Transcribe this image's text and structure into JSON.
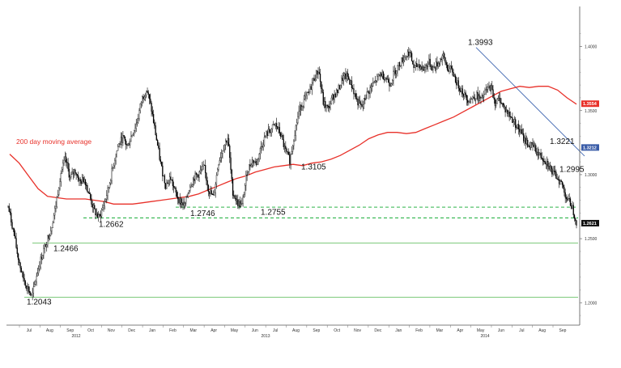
{
  "chart_data": {
    "type": "candlestick",
    "title": "",
    "xlabel": "",
    "ylabel": "",
    "ylim": [
      1.185,
      1.425
    ],
    "y_ticks": [
      "1.2000",
      "1.2500",
      "1.3000",
      "1.3500",
      "1.4000"
    ],
    "x_month_ticks": [
      "Jul",
      "Aug",
      "Sep",
      "Oct",
      "Nov",
      "Dec",
      "Jan",
      "Feb",
      "Mar",
      "Apr",
      "May",
      "Jun",
      "Jul",
      "Aug",
      "Sep",
      "Oct",
      "Nov",
      "Dec",
      "Jan",
      "Feb",
      "Mar",
      "Apr",
      "May",
      "Jun",
      "Jul",
      "Aug",
      "Sep"
    ],
    "x_year_ticks": [
      "2012",
      "2013",
      "2014"
    ],
    "close_path": [
      1.275,
      1.258,
      1.237,
      1.221,
      1.212,
      1.204,
      1.222,
      1.236,
      1.247,
      1.258,
      1.276,
      1.301,
      1.312,
      1.297,
      1.304,
      1.294,
      1.297,
      1.284,
      1.272,
      1.266,
      1.276,
      1.289,
      1.307,
      1.322,
      1.329,
      1.322,
      1.332,
      1.341,
      1.359,
      1.367,
      1.351,
      1.329,
      1.307,
      1.292,
      1.298,
      1.286,
      1.279,
      1.276,
      1.291,
      1.298,
      1.301,
      1.306,
      1.288,
      1.282,
      1.309,
      1.321,
      1.329,
      1.287,
      1.278,
      1.276,
      1.302,
      1.311,
      1.309,
      1.322,
      1.331,
      1.335,
      1.339,
      1.332,
      1.319,
      1.311,
      1.333,
      1.351,
      1.358,
      1.364,
      1.375,
      1.382,
      1.356,
      1.351,
      1.361,
      1.365,
      1.375,
      1.377,
      1.369,
      1.358,
      1.352,
      1.362,
      1.368,
      1.373,
      1.379,
      1.376,
      1.371,
      1.381,
      1.387,
      1.392,
      1.396,
      1.383,
      1.386,
      1.382,
      1.388,
      1.383,
      1.387,
      1.393,
      1.383,
      1.381,
      1.371,
      1.366,
      1.359,
      1.359,
      1.362,
      1.358,
      1.365,
      1.369,
      1.356,
      1.359,
      1.351,
      1.346,
      1.341,
      1.335,
      1.328,
      1.323,
      1.322,
      1.316,
      1.313,
      1.309,
      1.301,
      1.298,
      1.292,
      1.281,
      1.276,
      1.263
    ],
    "moving_average_path": [
      1.316,
      1.309,
      1.299,
      1.289,
      1.283,
      1.282,
      1.281,
      1.281,
      1.281,
      1.28,
      1.279,
      1.277,
      1.277,
      1.277,
      1.278,
      1.279,
      1.28,
      1.281,
      1.282,
      1.283,
      1.285,
      1.288,
      1.291,
      1.294,
      1.297,
      1.299,
      1.302,
      1.304,
      1.306,
      1.307,
      1.308,
      1.307,
      1.309,
      1.31,
      1.312,
      1.315,
      1.319,
      1.323,
      1.328,
      1.331,
      1.333,
      1.333,
      1.332,
      1.333,
      1.336,
      1.339,
      1.342,
      1.345,
      1.349,
      1.353,
      1.357,
      1.361,
      1.365,
      1.367,
      1.369,
      1.368,
      1.369,
      1.369,
      1.366,
      1.36,
      1.355
    ],
    "series": [
      {
        "name": "200 day moving average",
        "color": "#e8312a"
      }
    ],
    "annotations": [
      {
        "text": "1.3993",
        "value": 1.3993
      },
      {
        "text": "1.3221",
        "value": 1.3221
      },
      {
        "text": "1.3105",
        "value": 1.3105
      },
      {
        "text": "1.2995",
        "value": 1.2995
      },
      {
        "text": "1.2755",
        "value": 1.2755
      },
      {
        "text": "1.2746",
        "value": 1.2746
      },
      {
        "text": "1.2662",
        "value": 1.2662
      },
      {
        "text": "1.2466",
        "value": 1.2466
      },
      {
        "text": "1.2043",
        "value": 1.2043
      }
    ],
    "horizontal_levels": [
      {
        "value": 1.2746,
        "style": "dashed",
        "color": "#2db34a"
      },
      {
        "value": 1.2662,
        "style": "dashed",
        "color": "#2db34a"
      },
      {
        "value": 1.2466,
        "style": "solid",
        "color": "#6cc36a"
      },
      {
        "value": 1.2043,
        "style": "solid",
        "color": "#6cc36a"
      }
    ],
    "trendline": {
      "from": 1.3993,
      "to": 1.3221,
      "color": "#4a6fb5"
    },
    "badges": [
      {
        "text": "1.3554",
        "color": "#e8312a"
      },
      {
        "text": "1.3212",
        "color": "#3a5ca8"
      },
      {
        "text": "1.2621",
        "color": "#111111"
      }
    ],
    "grid": false,
    "colors": {
      "price": "#000000",
      "ma": "#e8312a",
      "support": "#2db34a",
      "trend": "#4a6fb5"
    }
  }
}
